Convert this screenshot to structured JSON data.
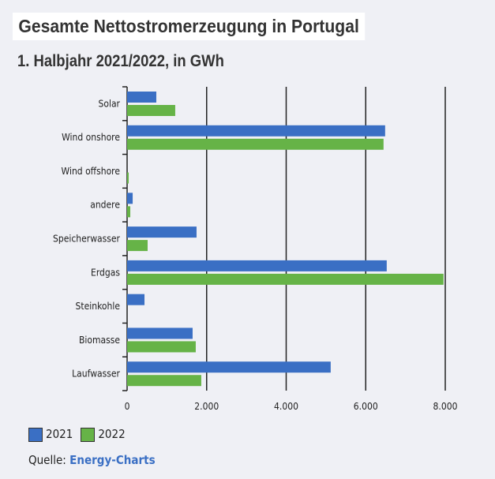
{
  "chart_data": {
    "type": "bar",
    "orientation": "horizontal",
    "title": "Gesamte Nettostromerzeugung in Portugal",
    "subtitle": "1. Halbjahr 2021/2022, in GWh",
    "categories": [
      "Solar",
      "Wind onshore",
      "Wind offshore",
      "andere",
      "Speicherwasser",
      "Erdgas",
      "Steinkohle",
      "Biomasse",
      "Laufwasser"
    ],
    "series": [
      {
        "name": "2021",
        "color": "#3a6fc4",
        "values": [
          734,
          6488,
          0,
          140,
          1746,
          6528,
          437,
          1647,
          5119
        ]
      },
      {
        "name": "2022",
        "color": "#66b347",
        "values": [
          1210,
          6448,
          40,
          80,
          516,
          7956,
          0,
          1726,
          1865
        ]
      }
    ],
    "xlim": [
      0,
      8000
    ],
    "xticks": [
      0,
      2000,
      4000,
      6000,
      8000
    ],
    "xtick_labels": [
      "0",
      "2.000",
      "4.000",
      "6.000",
      "8.000"
    ],
    "grid": "vertical",
    "legend": "bottom-left"
  },
  "source": {
    "label": "Quelle:",
    "name": "Energy-Charts"
  }
}
